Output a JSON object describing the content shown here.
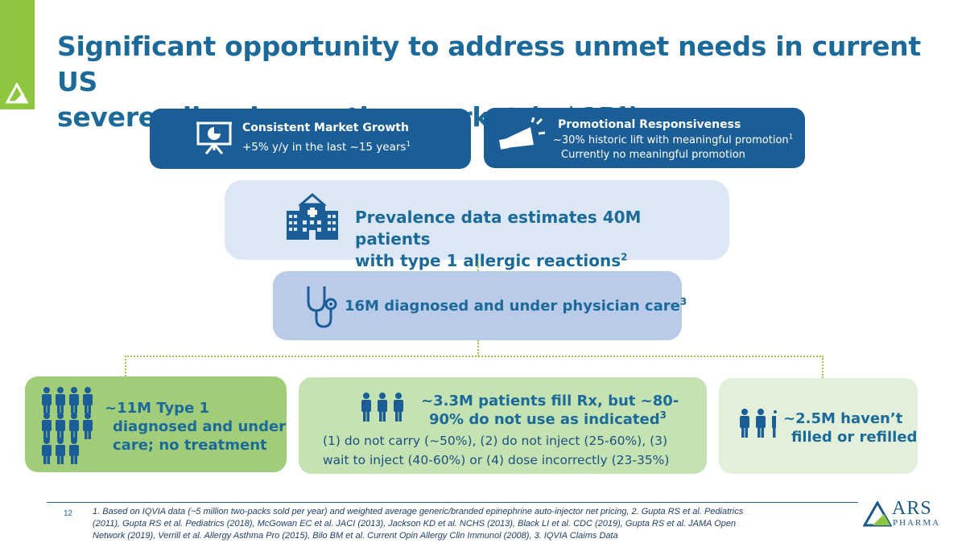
{
  "slide": {
    "title_line1": "Significant opportunity to address unmet needs in current US",
    "title_line2": "severe allergic reaction market (~$1B",
    "title_sup": "1",
    "title_end": ")",
    "page_number": "12"
  },
  "cards": {
    "growth": {
      "title": "Consistent Market Growth",
      "text": "+5% y/y in the last ~15 years",
      "sup": "1",
      "icon": "presentation-chart-icon"
    },
    "promo": {
      "title": "Promotional Responsiveness",
      "line1": "~30% historic lift with meaningful promotion",
      "line1_sup": "1",
      "line2": "Currently no meaningful promotion",
      "icon": "megaphone-icon"
    }
  },
  "funnel": {
    "prevalence": {
      "line1": "Prevalence data estimates 40M patients",
      "line2": "with type 1 allergic reactions",
      "sup": "2",
      "icon": "hospital-icon"
    },
    "diagnosed": {
      "text": "16M diagnosed and under physician care",
      "sup": "3",
      "icon": "stethoscope-icon"
    }
  },
  "segments": {
    "no_treatment": {
      "line1": "~11M Type 1",
      "line2": "diagnosed and under",
      "line3": "care; no treatment",
      "icon": "people-icon"
    },
    "fill_rx": {
      "title_line1": "~3.3M patients fill Rx, but ~80-",
      "title_line2": "90% do not use as indicated",
      "title_sup": "3",
      "body_line1": "(1) do not carry (~50%), (2) do not inject (25-60%), (3)",
      "body_line2": "wait to inject (40-60%) or (4) dose incorrectly (23-35%)",
      "icon": "people-icon"
    },
    "not_filled": {
      "line1": "~2.5M haven’t",
      "line2": "filled or refilled",
      "icon": "people-icon"
    }
  },
  "footnote": {
    "line1": "1. Based on IQVIA data (~5 million two-packs sold per year) and weighted average generic/branded epinephrine auto-injector net pricing, 2. Gupta RS et al. Pediatrics",
    "line2": "(2011), Gupta RS et al. Pediatrics (2018), McGowan EC et al. JACI (2013), Jackson KD et al. NCHS (2013), Black LI et al. CDC (2019), Gupta RS et al. JAMA Open",
    "line3": "Network (2019), Verrill et al. Allergy Asthma Pro (2015), Bilo BM et al. Current Opin Allergy Clin Immunol (2008), 3. IQVIA Claims Data"
  },
  "logo": {
    "word": "ARS",
    "sub": "PHARMA"
  },
  "colors": {
    "brand_blue": "#1b5e97",
    "green_bar": "#8dc63f",
    "light_blue": "#dce7f5",
    "mid_blue": "#b9cbe8",
    "green_dark": "#a1cd7a",
    "green_mid": "#c5e2b2",
    "green_light": "#e2f0d9"
  }
}
